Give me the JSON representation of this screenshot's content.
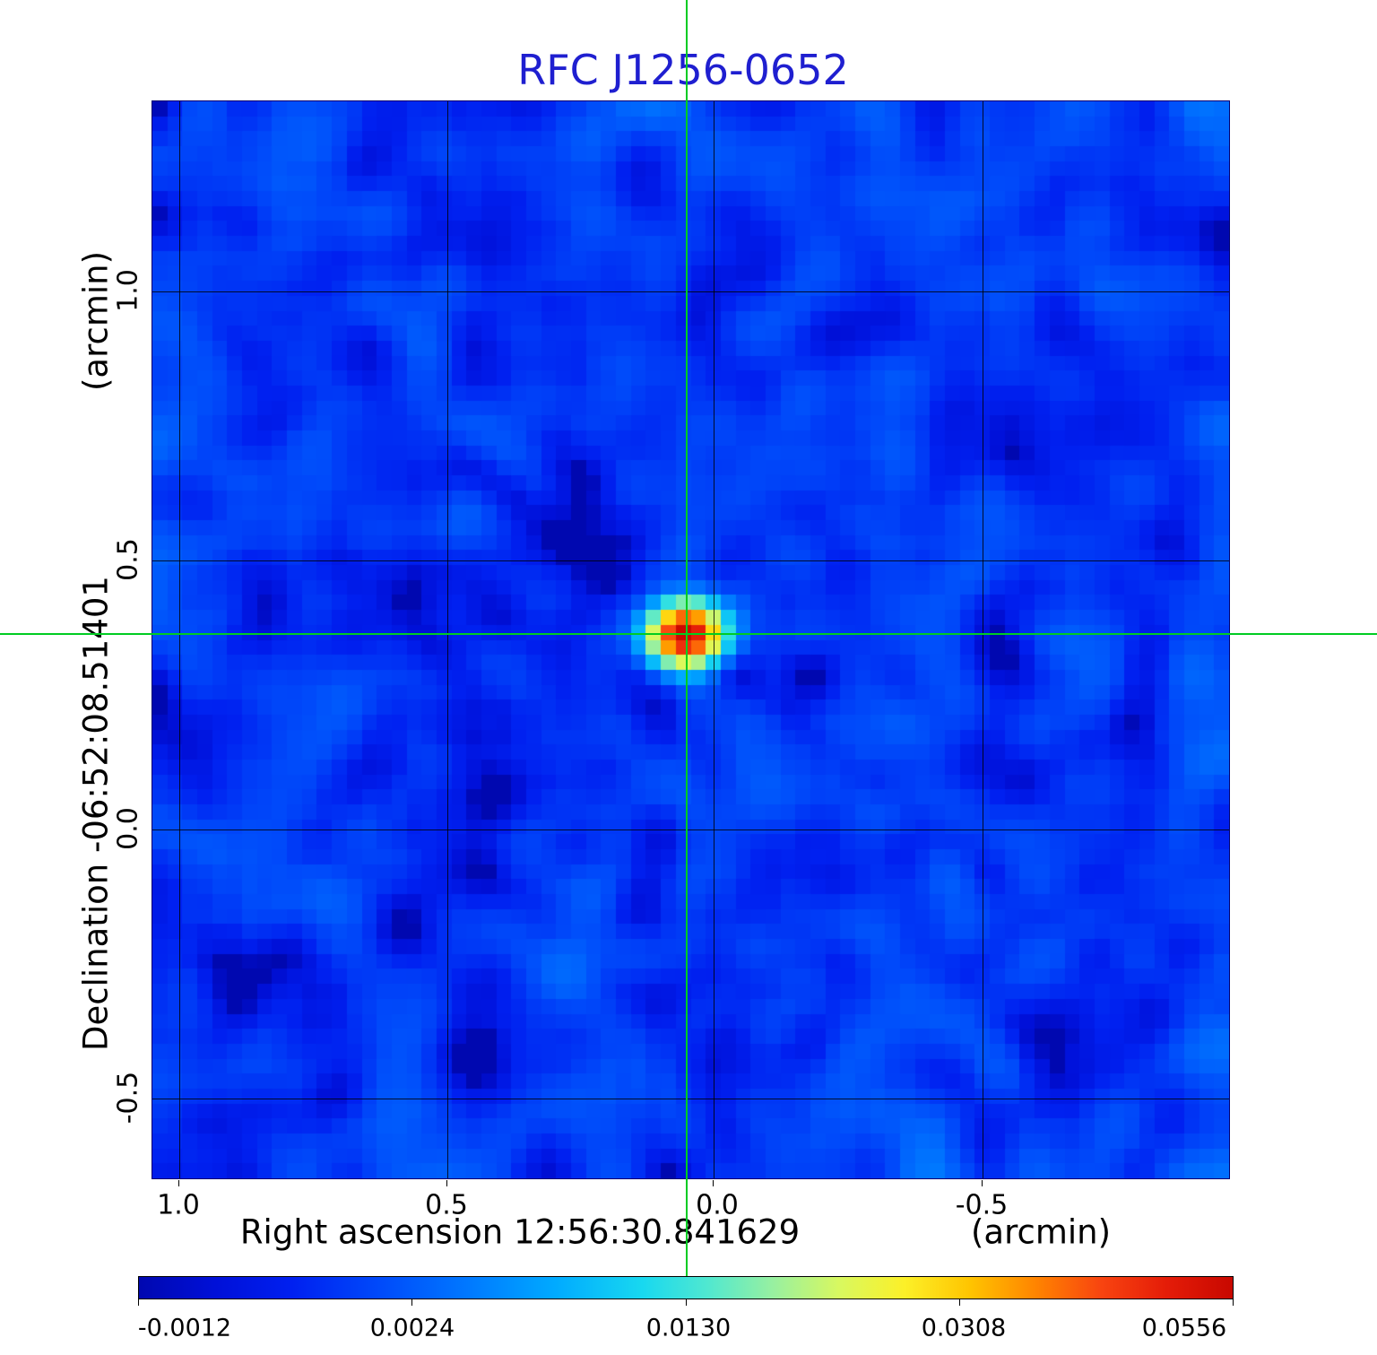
{
  "title": {
    "text": "RFC J1256-0652"
  },
  "y_axis": {
    "unit": "(arcmin)",
    "label": "Declination  -06:52:08.51401",
    "ticks": [
      "1.0",
      "0.5",
      "0.0",
      "-0.5"
    ]
  },
  "x_axis": {
    "label": "Right ascension  12:56:30.841629",
    "unit": "(arcmin)",
    "ticks": [
      "1.0",
      "0.5",
      "0.0",
      "-0.5"
    ]
  },
  "colorbar": {
    "labels": [
      "-0.0012",
      "0.0024",
      "0.0130",
      "0.0308",
      "0.0556"
    ]
  },
  "colors": {
    "title": "#1f1fd0",
    "crosshair": "#00cc22",
    "axis_text": "#000000",
    "background_base": "#0040f0"
  },
  "chart_data": {
    "type": "heatmap",
    "title": "RFC J1256-0652",
    "xlabel": "Right ascension 12:56:30.841629 (arcmin)",
    "ylabel": "Declination -06:52:08.51401 (arcmin)",
    "x_range_arcmin": [
      1.05,
      -0.97
    ],
    "y_range_arcmin": [
      -0.65,
      1.35
    ],
    "x_ticks_arcmin": [
      1.0,
      0.5,
      0.0,
      -0.5
    ],
    "y_ticks_arcmin": [
      1.0,
      0.5,
      0.0,
      -0.5
    ],
    "grid": true,
    "intensity_scale": "sqrt",
    "value_min": -0.0012,
    "value_max": 0.0556,
    "colorbar_ticks": [
      -0.0012,
      0.0024,
      0.013,
      0.0308,
      0.0556
    ],
    "colormap": "jet",
    "colormap_stops": [
      [
        0.0,
        "#0008b0"
      ],
      [
        0.07,
        "#0010d8"
      ],
      [
        0.14,
        "#0020f0"
      ],
      [
        0.22,
        "#004afa"
      ],
      [
        0.3,
        "#0078ff"
      ],
      [
        0.38,
        "#00aaff"
      ],
      [
        0.46,
        "#18d8f0"
      ],
      [
        0.52,
        "#50e8d0"
      ],
      [
        0.58,
        "#98f0a0"
      ],
      [
        0.64,
        "#d8f860"
      ],
      [
        0.7,
        "#fcf028"
      ],
      [
        0.76,
        "#ffc400"
      ],
      [
        0.82,
        "#ff8400"
      ],
      [
        0.88,
        "#f84410"
      ],
      [
        0.94,
        "#e41c08"
      ],
      [
        1.0,
        "#c80800"
      ]
    ],
    "source": {
      "name": "RFC J1256-0652",
      "ra": "12:56:30.841629",
      "dec": "-06:52:08.51401",
      "offset_arcmin_x": 0.05,
      "offset_arcmin_y": 0.36,
      "peak_value": 0.0556,
      "gaussian_sigma_cells_x": 1.6,
      "gaussian_sigma_cells_y": 1.35
    },
    "background_noise": {
      "mean": 0.0007,
      "sigma": 0.00065,
      "sigma_lowfreq": 0.00045,
      "seed": 7
    },
    "sidelobe_streak": {
      "angle_deg": 38,
      "depth": 0.0011,
      "second_angle_deg": 52
    },
    "grid_cells": 72
  }
}
